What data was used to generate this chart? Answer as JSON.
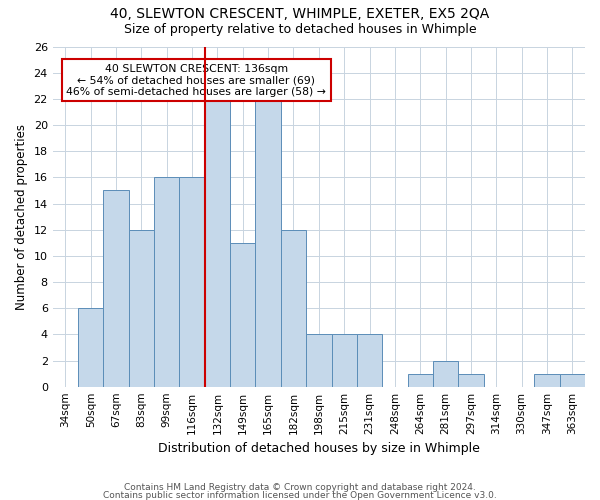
{
  "title1": "40, SLEWTON CRESCENT, WHIMPLE, EXETER, EX5 2QA",
  "title2": "Size of property relative to detached houses in Whimple",
  "xlabel": "Distribution of detached houses by size in Whimple",
  "ylabel": "Number of detached properties",
  "categories": [
    "34sqm",
    "50sqm",
    "67sqm",
    "83sqm",
    "99sqm",
    "116sqm",
    "132sqm",
    "149sqm",
    "165sqm",
    "182sqm",
    "198sqm",
    "215sqm",
    "231sqm",
    "248sqm",
    "264sqm",
    "281sqm",
    "297sqm",
    "314sqm",
    "330sqm",
    "347sqm",
    "363sqm"
  ],
  "values": [
    0,
    6,
    15,
    12,
    16,
    16,
    22,
    11,
    22,
    12,
    4,
    4,
    4,
    0,
    1,
    2,
    1,
    0,
    0,
    1,
    1
  ],
  "bar_color": "#c5d8ea",
  "bar_edge_color": "#5b8db8",
  "highlight_index": 6,
  "highlight_color": "#cc0000",
  "annotation_text": "40 SLEWTON CRESCENT: 136sqm\n← 54% of detached houses are smaller (69)\n46% of semi-detached houses are larger (58) →",
  "annotation_box_color": "#ffffff",
  "annotation_box_edge": "#cc0000",
  "footer1": "Contains HM Land Registry data © Crown copyright and database right 2024.",
  "footer2": "Contains public sector information licensed under the Open Government Licence v3.0.",
  "ylim": [
    0,
    26
  ],
  "yticks": [
    0,
    2,
    4,
    6,
    8,
    10,
    12,
    14,
    16,
    18,
    20,
    22,
    24,
    26
  ],
  "bg_color": "#ffffff",
  "grid_color": "#c8d4e0"
}
